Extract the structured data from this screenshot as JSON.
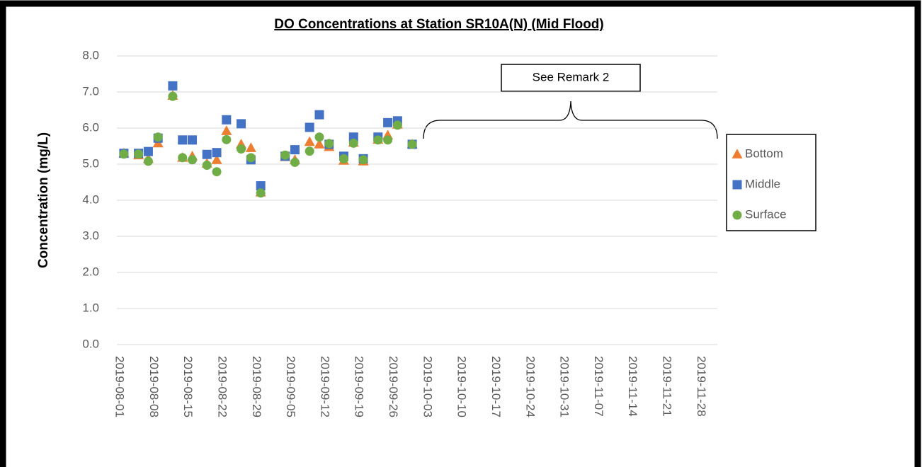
{
  "chart_data": {
    "type": "scatter",
    "title": "DO Concentrations at Station SR10A(N) (Mid Flood)",
    "y_label": "Concentration (mg/L)",
    "annotation": "See Remark 2",
    "x": [
      "2019-08-02",
      "2019-08-05",
      "2019-08-07",
      "2019-08-09",
      "2019-08-12",
      "2019-08-14",
      "2019-08-16",
      "2019-08-19",
      "2019-08-21",
      "2019-08-23",
      "2019-08-26",
      "2019-08-28",
      "2019-08-30",
      "2019-09-04",
      "2019-09-06",
      "2019-09-09",
      "2019-09-11",
      "2019-09-13",
      "2019-09-16",
      "2019-09-18",
      "2019-09-20",
      "2019-09-23",
      "2019-09-25",
      "2019-09-27",
      "2019-09-30"
    ],
    "series": [
      {
        "name": "Bottom",
        "color": "#ED7D31",
        "marker": "triangle",
        "values": [
          5.3,
          5.25,
          5.15,
          5.58,
          6.9,
          5.18,
          5.22,
          5.02,
          5.12,
          5.92,
          5.55,
          5.45,
          4.22,
          5.2,
          5.12,
          5.62,
          5.55,
          5.48,
          5.1,
          5.6,
          5.08,
          5.68,
          5.8,
          6.1,
          5.55
        ]
      },
      {
        "name": "Middle",
        "color": "#4472C4",
        "marker": "square",
        "values": [
          5.3,
          5.3,
          5.35,
          5.72,
          7.17,
          5.67,
          5.67,
          5.27,
          5.32,
          6.23,
          6.12,
          5.12,
          4.4,
          5.22,
          5.4,
          6.02,
          6.37,
          5.55,
          5.22,
          5.75,
          5.15,
          5.75,
          6.15,
          6.2,
          5.55
        ]
      },
      {
        "name": "Surface",
        "color": "#70AD47",
        "marker": "circle",
        "values": [
          5.28,
          5.28,
          5.08,
          5.75,
          6.88,
          5.18,
          5.12,
          4.97,
          4.79,
          5.68,
          5.42,
          5.18,
          4.2,
          5.25,
          5.05,
          5.36,
          5.75,
          5.57,
          5.15,
          5.58,
          5.12,
          5.67,
          5.67,
          6.08,
          5.55
        ]
      }
    ],
    "xlim": [
      "2019-08-01",
      "2019-12-01"
    ],
    "xticks": [
      "2019-08-01",
      "2019-08-08",
      "2019-08-15",
      "2019-08-22",
      "2019-08-29",
      "2019-09-05",
      "2019-09-12",
      "2019-09-19",
      "2019-09-26",
      "2019-10-03",
      "2019-10-10",
      "2019-10-17",
      "2019-10-24",
      "2019-10-31",
      "2019-11-07",
      "2019-11-14",
      "2019-11-21",
      "2019-11-28"
    ],
    "ylim": [
      0,
      8
    ],
    "yticks": [
      {
        "value": 0,
        "label": "0.0"
      },
      {
        "value": 1,
        "label": "1.0"
      },
      {
        "value": 2,
        "label": "2.0"
      },
      {
        "value": 3,
        "label": "3.0"
      },
      {
        "value": 4,
        "label": "4.0"
      },
      {
        "value": 5,
        "label": "5.0"
      },
      {
        "value": 6,
        "label": "6.0"
      },
      {
        "value": 7,
        "label": "7.0"
      },
      {
        "value": 8,
        "label": "8.0"
      }
    ],
    "grid": true,
    "legend": "right"
  }
}
